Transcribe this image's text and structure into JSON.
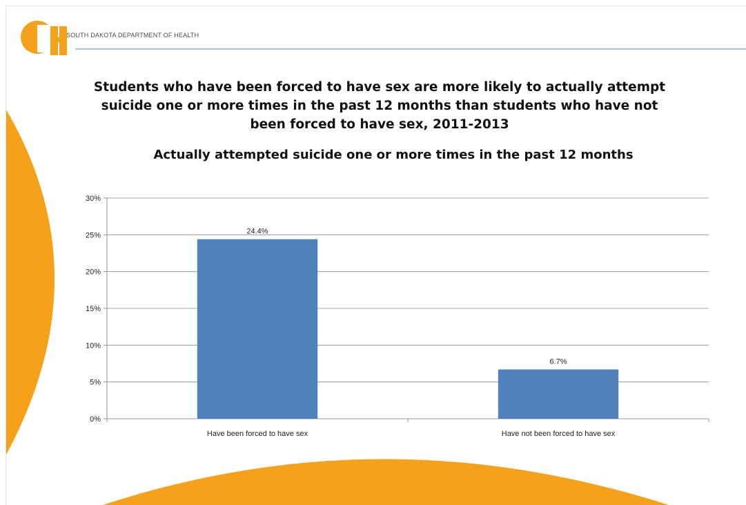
{
  "header": {
    "org_name": "SOUTH DAKOTA DEPARTMENT OF HEALTH",
    "logo_color": "#f5a21a"
  },
  "slide_title": "Students who have been forced to have sex are more likely to actually attempt suicide one or more times in the past 12 months than students who have not been forced to have sex, 2011-2013",
  "colors": {
    "accent_orange": "#f5a21a",
    "bar_blue": "#4f81bd",
    "rule_blue": "#a9c4dc",
    "gridline": "#888888"
  },
  "chart_data": {
    "type": "bar",
    "title": "Actually attempted suicide one or more times in the past 12 months",
    "categories": [
      "Have been forced to have sex",
      "Have not been forced to have sex"
    ],
    "values": [
      24.4,
      6.7
    ],
    "data_labels": [
      "24.4%",
      "6.7%"
    ],
    "ylim": [
      0,
      30
    ],
    "yticks": [
      0,
      5,
      10,
      15,
      20,
      25,
      30
    ],
    "ytick_labels": [
      "0%",
      "5%",
      "10%",
      "15%",
      "20%",
      "25%",
      "30%"
    ],
    "grid": true,
    "legend": "none",
    "xlabel": "",
    "ylabel": ""
  }
}
